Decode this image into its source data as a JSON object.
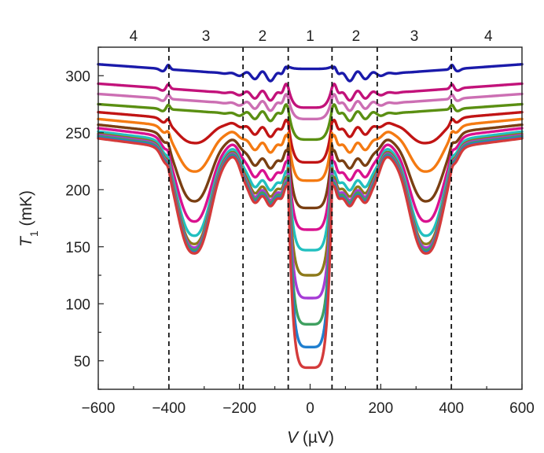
{
  "chart_data": {
    "type": "line",
    "xlabel": {
      "var": "V",
      "unit": " (µV)"
    },
    "ylabel": {
      "var": "T",
      "sub": "1",
      "unit": " (mK)"
    },
    "xlim": [
      -600,
      600
    ],
    "ylim": [
      25,
      325
    ],
    "x_ticks": [
      -600,
      -400,
      -200,
      0,
      200,
      400,
      600
    ],
    "y_ticks": [
      50,
      100,
      150,
      200,
      250,
      300
    ],
    "x_tick_labels": [
      "−600",
      "−400",
      "−200",
      "0",
      "200",
      "400",
      "600"
    ],
    "y_tick_labels": [
      "50",
      "100",
      "150",
      "200",
      "250",
      "300"
    ],
    "dividers": [
      -400,
      -190,
      -62,
      62,
      190,
      400
    ],
    "region_labels": [
      {
        "label": "4",
        "x": -500
      },
      {
        "label": "3",
        "x": -295
      },
      {
        "label": "2",
        "x": -135
      },
      {
        "label": "1",
        "x": 0
      },
      {
        "label": "2",
        "x": 130
      },
      {
        "label": "3",
        "x": 295
      },
      {
        "label": "4",
        "x": 505
      }
    ],
    "series": [
      {
        "color": "#1a1aaa",
        "base": 310,
        "center": 306,
        "dip": 0,
        "band": 0,
        "peak": 12
      },
      {
        "color": "#c2127a",
        "base": 293,
        "center": 272,
        "dip": 0,
        "band": 0,
        "peak": 14
      },
      {
        "color": "#cc6fb3",
        "base": 284,
        "center": 262,
        "dip": 0,
        "band": 0,
        "peak": 14
      },
      {
        "color": "#5a8f12",
        "base": 275,
        "center": 244,
        "dip": 0,
        "band": 0,
        "peak": 14
      },
      {
        "color": "#c11414",
        "base": 268,
        "center": 224,
        "dip": 20,
        "band": 5,
        "peak": 14
      },
      {
        "color": "#f47a12",
        "base": 262,
        "center": 208,
        "dip": 38,
        "band": 11,
        "peak": 14
      },
      {
        "color": "#7a3f12",
        "base": 257,
        "center": 184,
        "dip": 58,
        "band": 18,
        "peak": 14
      },
      {
        "color": "#d9128f",
        "base": 254,
        "center": 165,
        "dip": 72,
        "band": 24,
        "peak": 14
      },
      {
        "color": "#22c0c0",
        "base": 251,
        "center": 147,
        "dip": 81,
        "band": 29,
        "peak": 14
      },
      {
        "color": "#8d7a1a",
        "base": 249,
        "center": 125,
        "dip": 86,
        "band": 32,
        "peak": 14
      },
      {
        "color": "#a63cd6",
        "base": 248,
        "center": 105,
        "dip": 88,
        "band": 34,
        "peak": 14
      },
      {
        "color": "#3fa060",
        "base": 247,
        "center": 82,
        "dip": 89,
        "band": 35,
        "peak": 14
      },
      {
        "color": "#1f7fcf",
        "base": 246,
        "center": 62,
        "dip": 90,
        "band": 36,
        "peak": 14
      },
      {
        "color": "#d43b3b",
        "base": 245,
        "center": 44,
        "dip": 90,
        "band": 36,
        "peak": 14
      }
    ]
  }
}
